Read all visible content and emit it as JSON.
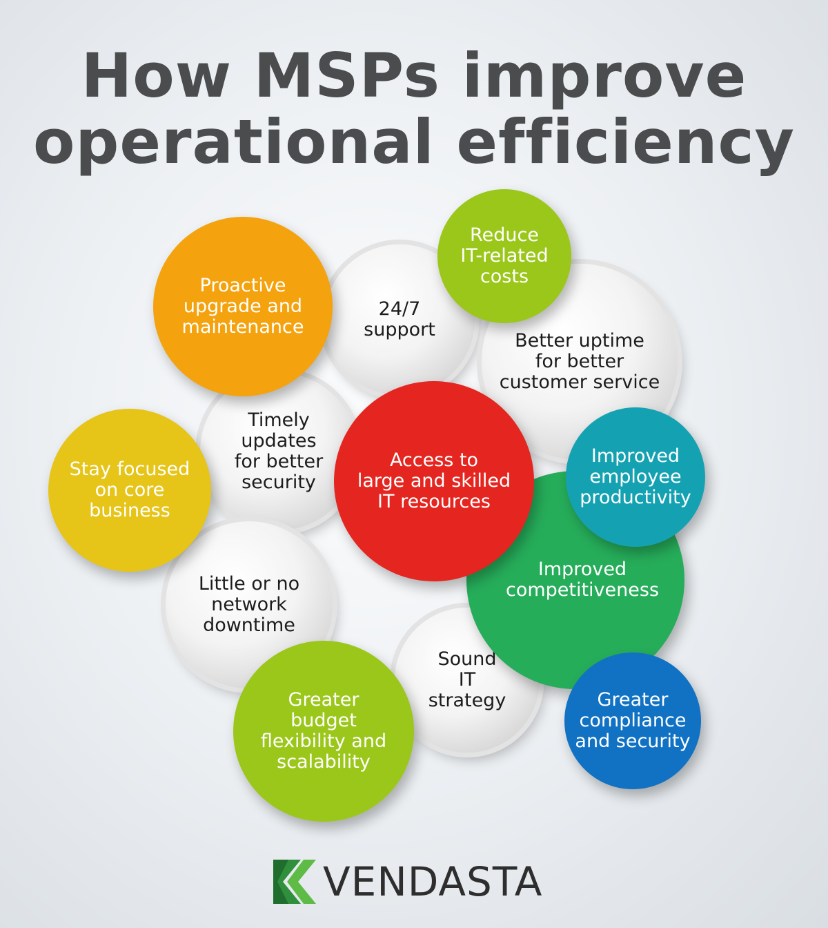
{
  "title": {
    "line1": "How MSPs improve",
    "line2": "operational efficiency"
  },
  "circles": {
    "support": "24/7\nsupport",
    "uptime": "Better uptime\nfor better\ncustomer service",
    "timely": "Timely\nupdates\nfor better\nsecurity",
    "downtime": "Little or no\nnetwork\ndowntime",
    "strategy": "Sound\nIT\nstrategy",
    "proactive": "Proactive\nupgrade and\nmaintenance",
    "reduce": "Reduce\nIT-related\ncosts",
    "focused": "Stay focused\non core\nbusiness",
    "competitiveness": "Improved\ncompetitiveness",
    "access": "Access to\nlarge and skilled\nIT resources",
    "productivity": "Improved\nemployee\nproductivity",
    "compliance": "Greater\ncompliance\nand security",
    "budget": "Greater\nbudget\nflexibility and\nscalability"
  },
  "colors": {
    "orange": "#f39c12",
    "yellow": "#e8c51b",
    "red": "#e5251f",
    "green": "#25b05a",
    "lime": "#9bc71b",
    "teal": "#14a3b3",
    "blue": "#1273c6",
    "grey": "#e6e6e6"
  },
  "logo": {
    "text": "VENDASTA",
    "icon": "vendasta-logo-icon"
  }
}
